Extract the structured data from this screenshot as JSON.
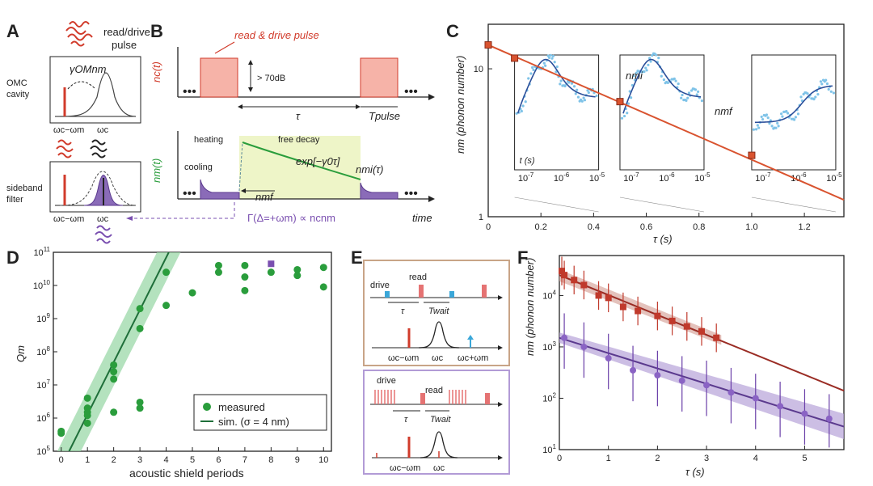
{
  "panels": {
    "A": {
      "letter": "A",
      "pulse_label_1": "read/drive",
      "pulse_label_2": "pulse",
      "cavity_label_1": "OMC",
      "cavity_label_2": "cavity",
      "gamma_label": "γOMnm",
      "filter_label_1": "sideband",
      "filter_label_2": "filter",
      "axis_wc_minus_wm": "ωc−ωm",
      "axis_wc": "ωc"
    },
    "B": {
      "letter": "B",
      "title": "read & drive pulse",
      "ylabel_top": "nc(t)",
      "db_label": "> 70dB",
      "tau_label": "τ",
      "tpulse_label": "Tpulse",
      "ylabel_bottom": "nm(t)",
      "heating": "heating",
      "free_decay": "free decay",
      "cooling": "cooling",
      "exp_label": "exp[−γ0τ]",
      "nmi_label": "nmi(τ)",
      "nmf_label": "nmf",
      "time_label": "time",
      "gamma_eq": "Γ(Δ=+ωm) ∝ ncnm"
    },
    "C": {
      "letter": "C",
      "ylabel": "nm (phonon number)",
      "xlabel": "τ (s)",
      "xticks": [
        "0",
        "0.2",
        "0.4",
        "0.6",
        "0.8",
        "1.0",
        "1.2"
      ],
      "yticks": [
        "1",
        "10"
      ],
      "inset_t_label": "t (s)",
      "inset_ticks": [
        "10-7",
        "10-6",
        "10-5"
      ],
      "nmi": "nmi",
      "nmf": "nmf"
    },
    "D": {
      "letter": "D",
      "ylabel": "Qm",
      "xlabel": "acoustic shield periods",
      "xticks": [
        "0",
        "1",
        "2",
        "3",
        "4",
        "5",
        "6",
        "7",
        "8",
        "9",
        "10"
      ],
      "yticks": [
        "10^5",
        "10^6",
        "10^7",
        "10^8",
        "10^9",
        "10^10",
        "10^11"
      ],
      "legend_measured": "measured",
      "legend_sim": "sim. (σ = 4 nm)"
    },
    "E": {
      "letter": "E",
      "drive": "drive",
      "read": "read",
      "tau": "τ",
      "twait": "Twait",
      "wc_minus": "ωc−ωm",
      "wc": "ωc",
      "wc_plus": "ωc+ωm"
    },
    "F": {
      "letter": "F",
      "ylabel": "nm (phonon number)",
      "xlabel": "τ (s)",
      "xticks": [
        "0",
        "1",
        "2",
        "3",
        "4",
        "5"
      ],
      "yticks": [
        "10^1",
        "10^2",
        "10^3",
        "10^4"
      ]
    }
  },
  "chart_data": [
    {
      "id": "D",
      "type": "scatter",
      "xlabel": "acoustic shield periods",
      "ylabel": "Qm",
      "ylim": [
        100000,
        100000000000
      ],
      "xlim": [
        -0.3,
        10.3
      ],
      "series": [
        {
          "name": "measured",
          "points": [
            [
              0,
              400000
            ],
            [
              0,
              350000
            ],
            [
              1,
              4000000
            ],
            [
              1,
              2000000
            ],
            [
              1,
              1500000
            ],
            [
              1,
              1200000
            ],
            [
              1,
              700000
            ],
            [
              2,
              25000000
            ],
            [
              2,
              40000000
            ],
            [
              2,
              15000000
            ],
            [
              2,
              1500000
            ],
            [
              3,
              2000000000
            ],
            [
              3,
              500000000
            ],
            [
              3,
              3000000
            ],
            [
              3,
              2000000
            ],
            [
              4,
              25000000000
            ],
            [
              4,
              2500000000
            ],
            [
              5,
              6000000000
            ],
            [
              6,
              40000000000
            ],
            [
              6,
              25000000000
            ],
            [
              7,
              40000000000
            ],
            [
              7,
              18000000000
            ],
            [
              7,
              7000000000
            ],
            [
              8,
              25000000000
            ],
            [
              9,
              30000000000
            ],
            [
              9,
              20000000000
            ],
            [
              10,
              35000000000
            ],
            [
              10,
              9000000000
            ]
          ]
        },
        {
          "name": "outlier",
          "points": [
            [
              8,
              45000000000
            ]
          ]
        }
      ]
    },
    {
      "id": "F",
      "type": "scatter",
      "xlabel": "τ (s)",
      "ylabel": "nm (phonon number)",
      "xlim": [
        0,
        5.8
      ],
      "ylim": [
        10,
        60000
      ],
      "series": [
        {
          "name": "red",
          "points": [
            [
              0.05,
              30000
            ],
            [
              0.1,
              25000
            ],
            [
              0.3,
              20000
            ],
            [
              0.5,
              16000
            ],
            [
              0.8,
              10000
            ],
            [
              1.0,
              9000
            ],
            [
              1.3,
              6000
            ],
            [
              1.6,
              5000
            ],
            [
              2.0,
              4000
            ],
            [
              2.3,
              3200
            ],
            [
              2.6,
              2500
            ],
            [
              2.9,
              2000
            ],
            [
              3.2,
              1500
            ]
          ]
        },
        {
          "name": "purple",
          "points": [
            [
              0.1,
              1500
            ],
            [
              0.5,
              1000
            ],
            [
              1.0,
              600
            ],
            [
              1.5,
              350
            ],
            [
              2.0,
              280
            ],
            [
              2.5,
              220
            ],
            [
              3.0,
              180
            ],
            [
              3.5,
              130
            ],
            [
              4.0,
              100
            ],
            [
              4.5,
              70
            ],
            [
              5.0,
              50
            ],
            [
              5.5,
              40
            ]
          ]
        }
      ]
    },
    {
      "id": "C",
      "type": "line",
      "xlabel": "τ (s)",
      "ylabel": "nm (phonon number)",
      "xlim": [
        0,
        1.35
      ],
      "ylim": [
        1,
        20
      ],
      "series": [
        {
          "name": "decay",
          "points": [
            [
              0,
              14.5
            ],
            [
              0.1,
              11.8
            ],
            [
              0.5,
              6
            ],
            [
              1.0,
              2.6
            ]
          ]
        }
      ]
    }
  ]
}
